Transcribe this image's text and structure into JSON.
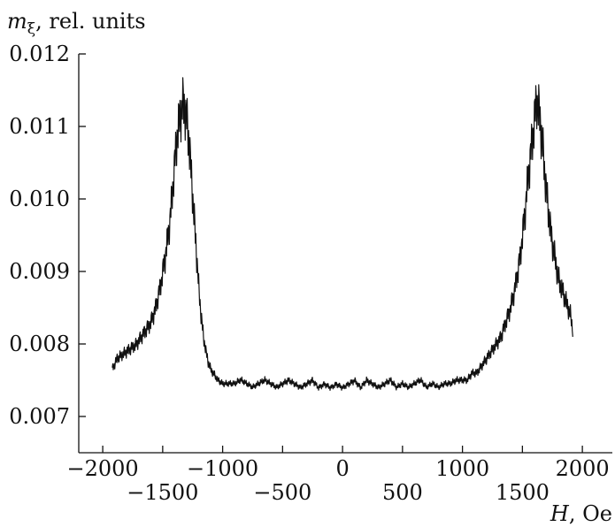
{
  "chart_data": {
    "type": "line",
    "ylabel_symbol": "m",
    "ylabel_subscript": "ξ",
    "ylabel_rest": ", rel. units",
    "xlabel_symbol": "H",
    "xlabel_rest": ", Oe",
    "xlim": [
      -2200,
      2250
    ],
    "ylim": [
      0.0065,
      0.012
    ],
    "yticks": [
      0.007,
      0.008,
      0.009,
      0.01,
      0.011,
      0.012
    ],
    "ytick_labels": [
      "0.007",
      "0.008",
      "0.009",
      "0.010",
      "0.011",
      "0.012"
    ],
    "xticks_upper": [
      -2000,
      -1000,
      0,
      1000,
      2000
    ],
    "xticks_upper_labels": [
      "−2000",
      "−1000",
      "0",
      "1000",
      "2000"
    ],
    "xticks_lower": [
      -1500,
      -500,
      500,
      1500
    ],
    "xticks_lower_labels": [
      "−1500",
      "−500",
      "500",
      "1500"
    ],
    "grid": false,
    "series": [
      {
        "x": [
          -1920,
          -1880,
          -1840,
          -1800,
          -1760,
          -1720,
          -1680,
          -1640,
          -1600,
          -1560,
          -1520,
          -1480,
          -1440,
          -1420,
          -1400,
          -1380,
          -1360,
          -1340,
          -1320,
          -1300,
          -1280,
          -1260,
          -1240,
          -1220,
          -1200,
          -1180,
          -1160,
          -1140,
          -1120,
          -1100,
          -1080,
          -1060,
          -1040,
          -1000,
          -950,
          -900,
          -850,
          -800,
          -750,
          -700,
          -650,
          -600,
          -550,
          -500,
          -450,
          -400,
          -350,
          -300,
          -250,
          -200,
          -150,
          -100,
          -50,
          0,
          50,
          100,
          150,
          200,
          250,
          300,
          350,
          400,
          450,
          500,
          550,
          600,
          650,
          700,
          750,
          800,
          850,
          900,
          950,
          1000,
          1040,
          1080,
          1120,
          1160,
          1200,
          1240,
          1280,
          1320,
          1360,
          1400,
          1440,
          1480,
          1500,
          1520,
          1540,
          1560,
          1580,
          1600,
          1620,
          1640,
          1660,
          1680,
          1700,
          1720,
          1740,
          1760,
          1780,
          1800,
          1820,
          1840,
          1860,
          1880,
          1900,
          1920
        ],
        "y": [
          0.00765,
          0.0078,
          0.00785,
          0.0079,
          0.00795,
          0.008,
          0.0081,
          0.0082,
          0.0083,
          0.0085,
          0.0088,
          0.0092,
          0.0097,
          0.0101,
          0.0105,
          0.0109,
          0.0111,
          0.0113,
          0.0113,
          0.0111,
          0.0108,
          0.0103,
          0.0098,
          0.0093,
          0.0088,
          0.0084,
          0.0081,
          0.0079,
          0.00775,
          0.00765,
          0.0076,
          0.00755,
          0.0075,
          0.00745,
          0.00745,
          0.00745,
          0.0075,
          0.00745,
          0.0074,
          0.00745,
          0.0075,
          0.00745,
          0.0074,
          0.00745,
          0.0075,
          0.00745,
          0.0074,
          0.00745,
          0.0075,
          0.0074,
          0.00745,
          0.0074,
          0.00745,
          0.0074,
          0.00745,
          0.0075,
          0.0074,
          0.0075,
          0.00745,
          0.0074,
          0.00745,
          0.0075,
          0.0074,
          0.00745,
          0.0074,
          0.00745,
          0.0075,
          0.0074,
          0.00745,
          0.0074,
          0.00745,
          0.00745,
          0.0075,
          0.0075,
          0.0075,
          0.0076,
          0.0076,
          0.0077,
          0.0078,
          0.0079,
          0.008,
          0.0081,
          0.0083,
          0.0085,
          0.0088,
          0.0092,
          0.0095,
          0.0098,
          0.0102,
          0.0105,
          0.0108,
          0.0111,
          0.0114,
          0.0112,
          0.0109,
          0.0105,
          0.0101,
          0.0098,
          0.0095,
          0.0093,
          0.0091,
          0.0089,
          0.0088,
          0.0087,
          0.0086,
          0.0085,
          0.0084,
          0.0082
        ]
      }
    ]
  }
}
